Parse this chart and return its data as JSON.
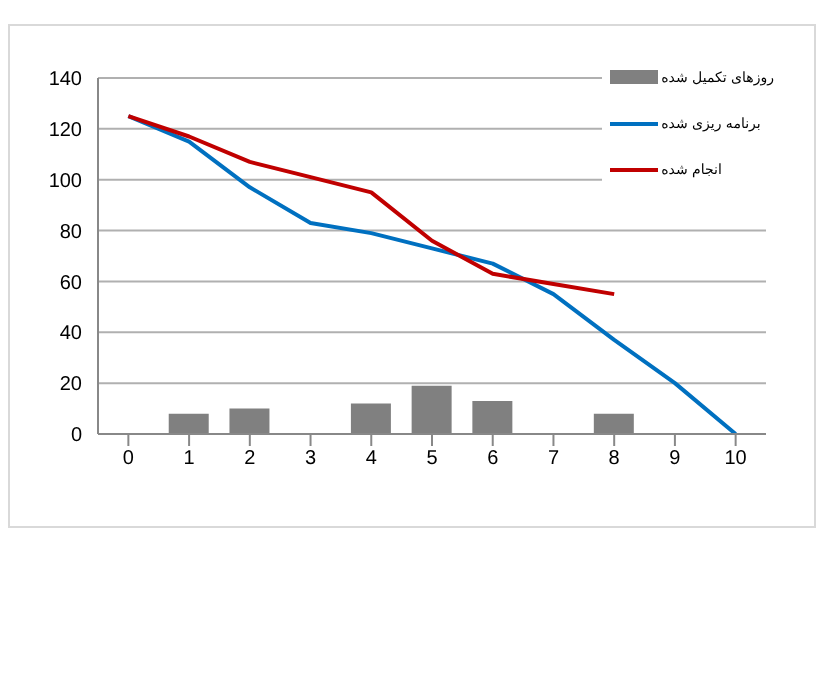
{
  "chart_data": {
    "type": "bar",
    "categories": [
      "0",
      "1",
      "2",
      "3",
      "4",
      "5",
      "6",
      "7",
      "8",
      "9",
      "10"
    ],
    "series": [
      {
        "name": "روزهای تکمیل شده",
        "color": "#808080",
        "values": [
          null,
          8,
          10,
          null,
          12,
          19,
          13,
          null,
          8,
          null,
          null
        ]
      },
      {
        "name": "برنامه ریزی شده",
        "type": "line",
        "color": "#0070c0",
        "values": [
          125,
          115,
          97,
          83,
          79,
          73,
          67,
          55,
          37,
          20,
          0
        ]
      },
      {
        "name": "انجام شده",
        "type": "line",
        "color": "#c00000",
        "values": [
          125,
          117,
          107,
          101,
          95,
          76,
          63,
          59,
          55,
          null,
          null
        ]
      }
    ],
    "ylim": [
      0,
      140
    ],
    "yticks": [
      0,
      20,
      40,
      60,
      80,
      100,
      120,
      140
    ],
    "grid": "y",
    "legend": "top right",
    "marker": "none",
    "line_style": "solid"
  }
}
